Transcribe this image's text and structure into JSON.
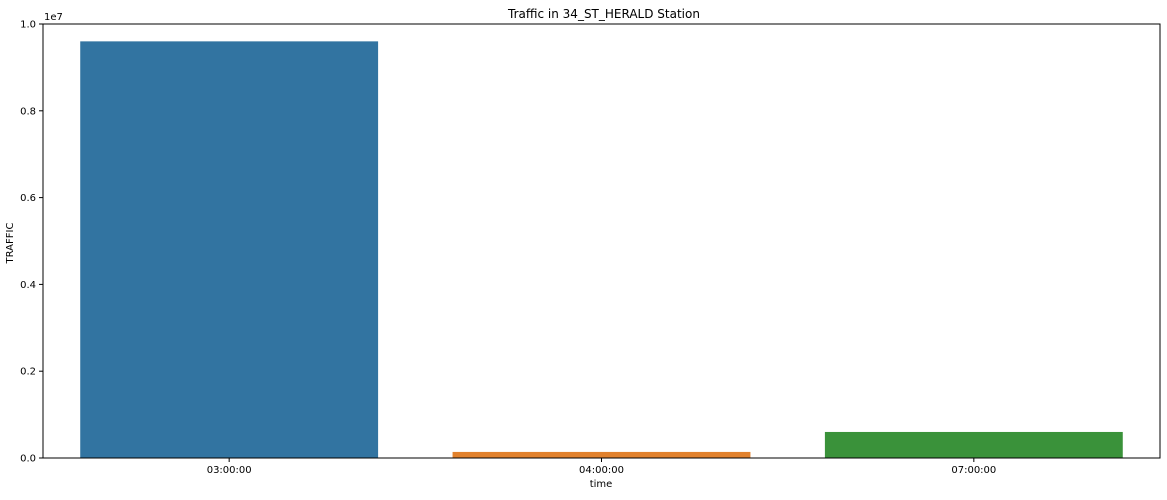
{
  "chart_data": {
    "type": "bar",
    "title": "Traffic in 34_ST_HERALD Station",
    "xlabel": "time",
    "ylabel": "TRAFFIC",
    "y_scale_label": "1e7",
    "categories": [
      "03:00:00",
      "04:00:00",
      "07:00:00"
    ],
    "values": [
      9600000,
      140000,
      600000
    ],
    "ylim": [
      0,
      10000000
    ],
    "yticks": [
      0,
      2000000,
      4000000,
      6000000,
      8000000,
      10000000
    ],
    "ytick_labels": [
      "0.0",
      "0.2",
      "0.4",
      "0.6",
      "0.8",
      "1.0"
    ],
    "colors": [
      "#3274a1",
      "#e1812c",
      "#3a923a"
    ],
    "grid": false,
    "legend": "none"
  }
}
